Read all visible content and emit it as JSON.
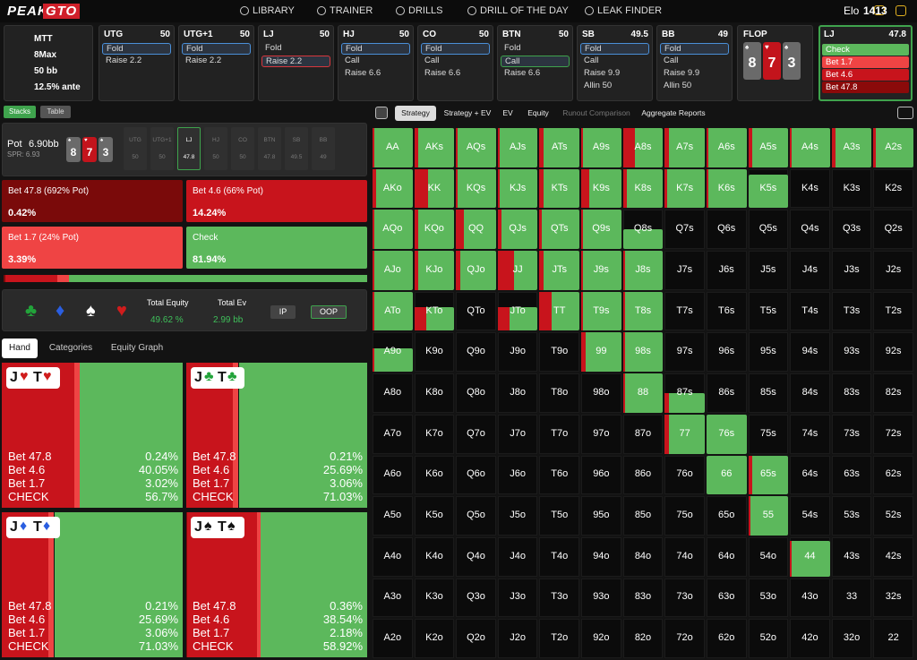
{
  "nav": {
    "logo": [
      "PEAK",
      "GTO"
    ],
    "items": [
      "LIBRARY",
      "TRAINER",
      "DRILLS",
      "DRILL OF THE DAY",
      "LEAK FINDER"
    ],
    "elo_label": "Elo",
    "elo": 1413
  },
  "game": {
    "items": [
      "MTT",
      "8Max",
      "50 bb",
      "12.5% ante"
    ]
  },
  "positions": [
    {
      "name": "UTG",
      "stack": 50,
      "actions": [
        {
          "label": "Fold",
          "highlight": "#4a8fd8"
        },
        {
          "label": "Raise 2.2"
        }
      ]
    },
    {
      "name": "UTG+1",
      "stack": 50,
      "actions": [
        {
          "label": "Fold",
          "highlight": "#4a8fd8"
        },
        {
          "label": "Raise 2.2"
        }
      ]
    },
    {
      "name": "LJ",
      "stack": 50,
      "actions": [
        {
          "label": "Fold"
        },
        {
          "label": "Raise 2.2",
          "highlight": "#d8373d"
        }
      ]
    },
    {
      "name": "HJ",
      "stack": 50,
      "actions": [
        {
          "label": "Fold",
          "highlight": "#4a8fd8"
        },
        {
          "label": "Call"
        },
        {
          "label": "Raise 6.6"
        }
      ]
    },
    {
      "name": "CO",
      "stack": 50,
      "actions": [
        {
          "label": "Fold",
          "highlight": "#4a8fd8"
        },
        {
          "label": "Call"
        },
        {
          "label": "Raise 6.6"
        }
      ]
    },
    {
      "name": "BTN",
      "stack": 50,
      "actions": [
        {
          "label": "Fold"
        },
        {
          "label": "Call",
          "highlight": "#3fa34d"
        },
        {
          "label": "Raise 6.6"
        }
      ]
    },
    {
      "name": "SB",
      "stack": 49.5,
      "actions": [
        {
          "label": "Fold",
          "highlight": "#4a8fd8"
        },
        {
          "label": "Call"
        },
        {
          "label": "Raise 9.9"
        },
        {
          "label": "Allin 50"
        }
      ]
    },
    {
      "name": "BB",
      "stack": 49,
      "actions": [
        {
          "label": "Fold",
          "highlight": "#4a8fd8"
        },
        {
          "label": "Call"
        },
        {
          "label": "Raise 9.9"
        },
        {
          "label": "Allin 50"
        }
      ]
    }
  ],
  "flop": {
    "name": "FLOP",
    "cards": [
      {
        "rank": "8",
        "suit": "♠",
        "color": "#6a6a6a"
      },
      {
        "rank": "7",
        "suit": "♥",
        "color": "#c3141c"
      },
      {
        "rank": "3",
        "suit": "♠",
        "color": "#6a6a6a"
      }
    ]
  },
  "current": {
    "name": "LJ",
    "stack": 47.8,
    "actions": [
      {
        "label": "Check",
        "color": "#5cb85c"
      },
      {
        "label": "Bet 1.7",
        "color": "#ef4444"
      },
      {
        "label": "Bet 4.6",
        "color": "#c8141c"
      },
      {
        "label": "Bet 47.8",
        "color": "#8b0a0a"
      }
    ]
  },
  "left_tabs": [
    "Stacks",
    "Table"
  ],
  "pot": {
    "label": "Pot",
    "value": "6.90bb",
    "spr": "SPR: 6.93",
    "seats": [
      {
        "name": "UTG",
        "stack": 50
      },
      {
        "name": "UTG+1",
        "stack": 50
      },
      {
        "name": "LJ",
        "stack": 47.8
      },
      {
        "name": "HJ",
        "stack": 50
      },
      {
        "name": "CO",
        "stack": 50
      },
      {
        "name": "BTN",
        "stack": 47.8
      },
      {
        "name": "SB",
        "stack": 49.5
      },
      {
        "name": "BB",
        "stack": 49
      }
    ]
  },
  "actions": [
    {
      "name": "Bet 47.8 (692% Pot)",
      "value": 0.42,
      "label": "0.42%",
      "color": "#7a0a0a"
    },
    {
      "name": "Bet 4.6 (66% Pot)",
      "value": 14.24,
      "label": "14.24%",
      "color": "#c8141c"
    },
    {
      "name": "Bet 1.7 (24% Pot)",
      "value": 3.39,
      "label": "3.39%",
      "color": "#ef4444"
    },
    {
      "name": "Check",
      "value": 81.94,
      "label": "81.94%",
      "color": "#5cb85c"
    }
  ],
  "equity": {
    "suits": [
      {
        "symbol": "♣",
        "color": "#22a33a"
      },
      {
        "symbol": "♦",
        "color": "#2a5ee0"
      },
      {
        "symbol": "♠",
        "color": "#ffffff"
      },
      {
        "symbol": "♥",
        "color": "#d01c1c"
      }
    ],
    "total_equity_label": "Total Equity",
    "total_equity": "49.62 %",
    "total_ev_label": "Total Ev",
    "total_ev": "2.99 bb",
    "buttons": [
      "IP",
      "OOP"
    ]
  },
  "hand_tabs": [
    "Hand",
    "Categories",
    "Equity Graph"
  ],
  "hands": [
    {
      "cards": [
        {
          "rank": "J",
          "suit": "♥",
          "color": "#d01c1c"
        },
        {
          "rank": "T",
          "suit": "♥",
          "color": "#d01c1c"
        }
      ],
      "stats": [
        {
          "name": "Bet 47.8",
          "value": 0.24,
          "label": "0.24%"
        },
        {
          "name": "Bet 4.6",
          "value": 40.05,
          "label": "40.05%"
        },
        {
          "name": "Bet 1.7",
          "value": 3.02,
          "label": "3.02%"
        },
        {
          "name": "CHECK",
          "value": 56.7,
          "label": "56.7%"
        }
      ]
    },
    {
      "cards": [
        {
          "rank": "J",
          "suit": "♣",
          "color": "#22a33a"
        },
        {
          "rank": "T",
          "suit": "♣",
          "color": "#22a33a"
        }
      ],
      "stats": [
        {
          "name": "Bet 47.8",
          "value": 0.21,
          "label": "0.21%"
        },
        {
          "name": "Bet 4.6",
          "value": 25.69,
          "label": "25.69%"
        },
        {
          "name": "Bet 1.7",
          "value": 3.06,
          "label": "3.06%"
        },
        {
          "name": "CHECK",
          "value": 71.03,
          "label": "71.03%"
        }
      ]
    },
    {
      "cards": [
        {
          "rank": "J",
          "suit": "♦",
          "color": "#2a5ee0"
        },
        {
          "rank": "T",
          "suit": "♦",
          "color": "#2a5ee0"
        }
      ],
      "stats": [
        {
          "name": "Bet 47.8",
          "value": 0.21,
          "label": "0.21%"
        },
        {
          "name": "Bet 4.6",
          "value": 25.69,
          "label": "25.69%"
        },
        {
          "name": "Bet 1.7",
          "value": 3.06,
          "label": "3.06%"
        },
        {
          "name": "CHECK",
          "value": 71.03,
          "label": "71.03%"
        }
      ]
    },
    {
      "cards": [
        {
          "rank": "J",
          "suit": "♠",
          "color": "#111111"
        },
        {
          "rank": "T",
          "suit": "♠",
          "color": "#111111"
        }
      ],
      "stats": [
        {
          "name": "Bet 47.8",
          "value": 0.36,
          "label": "0.36%"
        },
        {
          "name": "Bet 4.6",
          "value": 38.54,
          "label": "38.54%"
        },
        {
          "name": "Bet 1.7",
          "value": 2.18,
          "label": "2.18%"
        },
        {
          "name": "CHECK",
          "value": 58.92,
          "label": "58.92%"
        }
      ]
    }
  ],
  "strategy_tabs": [
    "Strategy",
    "Strategy + EV",
    "EV",
    "Equity",
    "Runout Comparison",
    "Aggregate Reports"
  ],
  "grid": {
    "fill_color": "#5cb85c",
    "bet_color": "#c8141c",
    "hands": [
      [
        "AA",
        "AKs",
        "AQs",
        "AJs",
        "ATs",
        "A9s",
        "A8s",
        "A7s",
        "A6s",
        "A5s",
        "A4s",
        "A3s",
        "A2s"
      ],
      [
        "AKo",
        "KK",
        "KQs",
        "KJs",
        "KTs",
        "K9s",
        "K8s",
        "K7s",
        "K6s",
        "K5s",
        "K4s",
        "K3s",
        "K2s"
      ],
      [
        "AQo",
        "KQo",
        "QQ",
        "QJs",
        "QTs",
        "Q9s",
        "Q8s",
        "Q7s",
        "Q6s",
        "Q5s",
        "Q4s",
        "Q3s",
        "Q2s"
      ],
      [
        "AJo",
        "KJo",
        "QJo",
        "JJ",
        "JTs",
        "J9s",
        "J8s",
        "J7s",
        "J6s",
        "J5s",
        "J4s",
        "J3s",
        "J2s"
      ],
      [
        "ATo",
        "KTo",
        "QTo",
        "JTo",
        "TT",
        "T9s",
        "T8s",
        "T7s",
        "T6s",
        "T5s",
        "T4s",
        "T3s",
        "T2s"
      ],
      [
        "A9o",
        "K9o",
        "Q9o",
        "J9o",
        "T9o",
        "99",
        "98s",
        "97s",
        "96s",
        "95s",
        "94s",
        "93s",
        "92s"
      ],
      [
        "A8o",
        "K8o",
        "Q8o",
        "J8o",
        "T8o",
        "98o",
        "88",
        "87s",
        "86s",
        "85s",
        "84s",
        "83s",
        "82s"
      ],
      [
        "A7o",
        "K7o",
        "Q7o",
        "J7o",
        "T7o",
        "97o",
        "87o",
        "77",
        "76s",
        "75s",
        "74s",
        "73s",
        "72s"
      ],
      [
        "A6o",
        "K6o",
        "Q6o",
        "J6o",
        "T6o",
        "96o",
        "86o",
        "76o",
        "66",
        "65s",
        "64s",
        "63s",
        "62s"
      ],
      [
        "A5o",
        "K5o",
        "Q5o",
        "J5o",
        "T5o",
        "95o",
        "85o",
        "75o",
        "65o",
        "55",
        "54s",
        "53s",
        "52s"
      ],
      [
        "A4o",
        "K4o",
        "Q4o",
        "J4o",
        "T4o",
        "94o",
        "84o",
        "74o",
        "64o",
        "54o",
        "44",
        "43s",
        "42s"
      ],
      [
        "A3o",
        "K3o",
        "Q3o",
        "J3o",
        "T3o",
        "93o",
        "83o",
        "73o",
        "63o",
        "53o",
        "43o",
        "33",
        "32s"
      ],
      [
        "A2o",
        "K2o",
        "Q2o",
        "J2o",
        "T2o",
        "92o",
        "82o",
        "72o",
        "62o",
        "52o",
        "42o",
        "32o",
        "22"
      ]
    ],
    "range": [
      [
        1,
        1,
        1,
        1,
        1,
        1,
        1,
        1,
        1,
        1,
        1,
        1,
        1
      ],
      [
        1,
        1,
        1,
        1,
        1,
        1,
        1,
        1,
        1,
        0.85,
        0,
        0,
        0
      ],
      [
        1,
        1,
        1,
        1,
        1,
        1,
        0.5,
        0,
        0,
        0,
        0,
        0,
        0
      ],
      [
        1,
        1,
        1,
        1,
        1,
        1,
        1,
        0,
        0,
        0,
        0,
        0,
        0
      ],
      [
        1,
        0.6,
        0,
        0.6,
        1,
        1,
        1,
        0,
        0,
        0,
        0,
        0,
        0
      ],
      [
        0.6,
        0,
        0,
        0,
        0,
        1,
        1,
        0,
        0,
        0,
        0,
        0,
        0
      ],
      [
        0,
        0,
        0,
        0,
        0,
        0,
        1,
        0.5,
        0,
        0,
        0,
        0,
        0
      ],
      [
        0,
        0,
        0,
        0,
        0,
        0,
        0,
        1,
        1,
        0,
        0,
        0,
        0
      ],
      [
        0,
        0,
        0,
        0,
        0,
        0,
        0,
        0,
        1,
        1,
        0,
        0,
        0
      ],
      [
        0,
        0,
        0,
        0,
        0,
        0,
        0,
        0,
        0,
        1,
        0,
        0,
        0
      ],
      [
        0,
        0,
        0,
        0,
        0,
        0,
        0,
        0,
        0,
        0,
        0.9,
        0,
        0
      ],
      [
        0,
        0,
        0,
        0,
        0,
        0,
        0,
        0,
        0,
        0,
        0,
        0,
        0
      ],
      [
        0,
        0,
        0,
        0,
        0,
        0,
        0,
        0,
        0,
        0,
        0,
        0,
        0
      ]
    ],
    "bet": [
      [
        0.05,
        0.1,
        0.05,
        0.05,
        0.1,
        0.05,
        0.3,
        0.1,
        0.05,
        0.1,
        0.05,
        0.1,
        0.05
      ],
      [
        0.1,
        0.35,
        0.05,
        0.05,
        0.1,
        0.2,
        0.1,
        0.05,
        0.05,
        0,
        0,
        0,
        0
      ],
      [
        0.05,
        0.1,
        0.2,
        0.1,
        0.05,
        0.05,
        0,
        0,
        0,
        0,
        0,
        0,
        0
      ],
      [
        0.05,
        0.1,
        0.1,
        0.4,
        0.1,
        0.05,
        0.05,
        0,
        0,
        0,
        0,
        0,
        0
      ],
      [
        0.05,
        0.3,
        0,
        0.3,
        0.3,
        0.05,
        0.05,
        0,
        0,
        0,
        0,
        0,
        0
      ],
      [
        0.05,
        0,
        0,
        0,
        0,
        0.1,
        0.05,
        0,
        0,
        0,
        0,
        0,
        0
      ],
      [
        0,
        0,
        0,
        0,
        0,
        0,
        0.05,
        0.1,
        0,
        0,
        0,
        0,
        0
      ],
      [
        0,
        0,
        0,
        0,
        0,
        0,
        0,
        0.1,
        0,
        0,
        0,
        0,
        0
      ],
      [
        0,
        0,
        0,
        0,
        0,
        0,
        0,
        0,
        0,
        0.1,
        0,
        0,
        0
      ],
      [
        0,
        0,
        0,
        0,
        0,
        0,
        0,
        0,
        0,
        0.05,
        0,
        0,
        0
      ],
      [
        0,
        0,
        0,
        0,
        0,
        0,
        0,
        0,
        0,
        0,
        0.05,
        0,
        0
      ],
      [
        0,
        0,
        0,
        0,
        0,
        0,
        0,
        0,
        0,
        0,
        0,
        0,
        0
      ],
      [
        0,
        0,
        0,
        0,
        0,
        0,
        0,
        0,
        0,
        0,
        0,
        0,
        0
      ]
    ]
  }
}
